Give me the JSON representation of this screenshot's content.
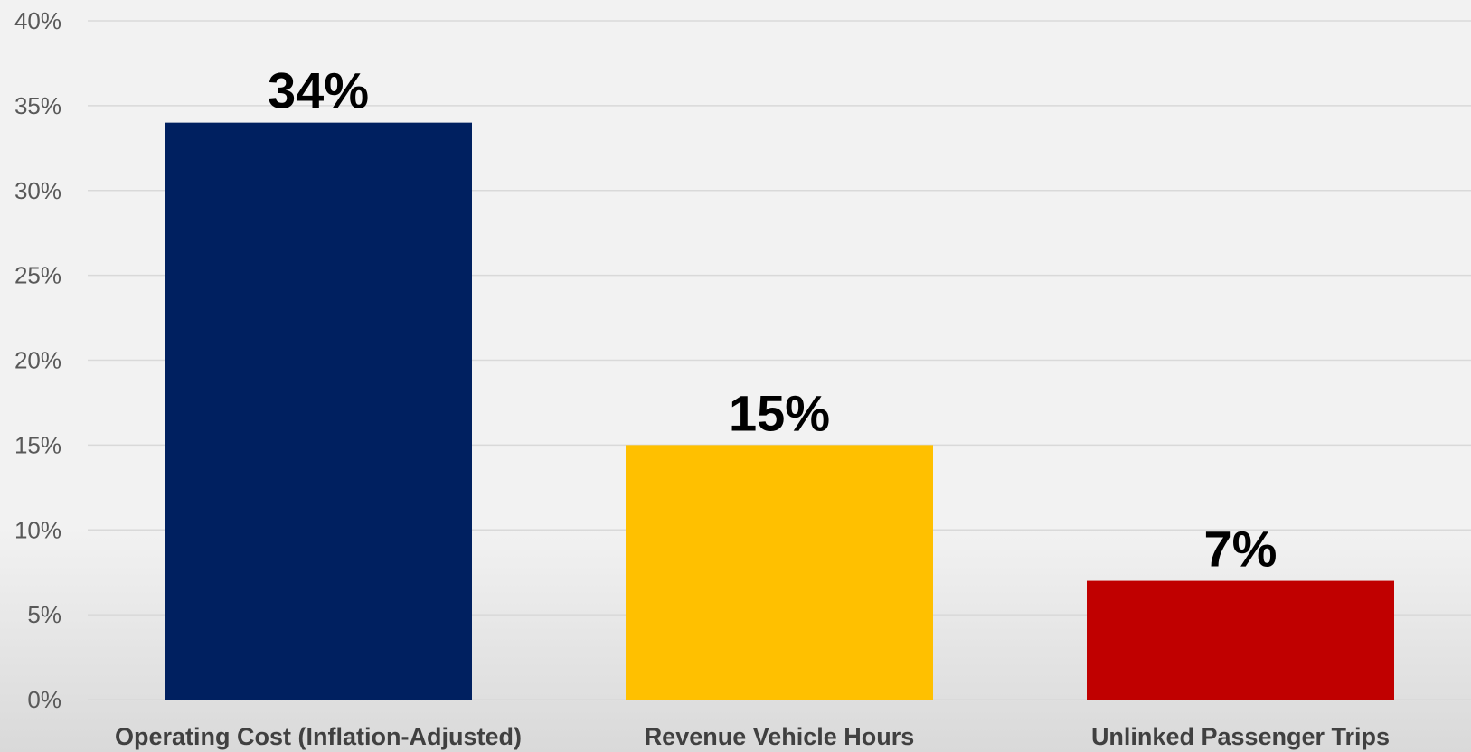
{
  "chart_data": {
    "type": "bar",
    "categories": [
      "Operating Cost (Inflation-Adjusted)",
      "Revenue Vehicle Hours",
      "Unlinked Passenger Trips"
    ],
    "values": [
      34,
      15,
      7
    ],
    "data_labels": [
      "34%",
      "15%",
      "7%"
    ],
    "colors": [
      "#002060",
      "#ffc000",
      "#c00000"
    ],
    "ylim": [
      0,
      40
    ],
    "y_ticks": [
      0,
      5,
      10,
      15,
      20,
      25,
      30,
      35,
      40
    ],
    "y_tick_labels": [
      "0%",
      "5%",
      "10%",
      "15%",
      "20%",
      "25%",
      "30%",
      "35%",
      "40%"
    ],
    "grid": true,
    "legend": "none",
    "title": "",
    "xlabel": "",
    "ylabel": ""
  }
}
